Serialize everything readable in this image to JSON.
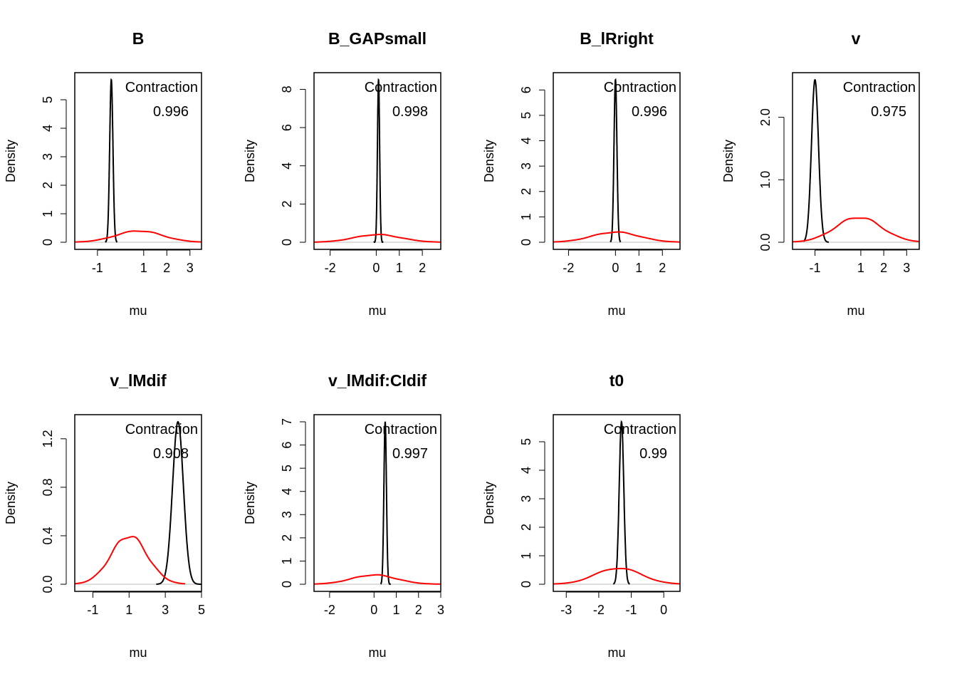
{
  "figure": {
    "colors": {
      "posterior": "#000000",
      "prior": "#ff0000",
      "zero_line": "#bebebe"
    }
  },
  "chart_data": [
    {
      "type": "line",
      "title": "B",
      "xlabel": "mu",
      "ylabel": "Density",
      "xlim": [
        -1.98,
        3.5
      ],
      "ylim": [
        0,
        5.7
      ],
      "xticks": [
        -1,
        1,
        2,
        3
      ],
      "yticks": [
        0,
        1,
        2,
        3,
        4,
        5
      ],
      "annotation": {
        "label": "Contraction",
        "value": "0.996"
      },
      "series": [
        {
          "role": "posterior",
          "center": -0.4,
          "sd": 0.07,
          "peak": 5.7,
          "range": [
            -0.65,
            -0.15
          ]
        },
        {
          "role": "prior",
          "center": 0.8,
          "sd": 1.0,
          "peak": 0.4,
          "range": [
            -1.98,
            3.5
          ]
        }
      ]
    },
    {
      "type": "line",
      "title": "B_GAPsmall",
      "xlabel": "mu",
      "ylabel": "Density",
      "xlim": [
        -2.7,
        2.8
      ],
      "ylim": [
        0,
        8.5
      ],
      "xticks": [
        -2,
        0,
        1,
        2
      ],
      "yticks": [
        0,
        2,
        4,
        6,
        8
      ],
      "annotation": {
        "label": "Contraction",
        "value": "0.998"
      },
      "series": [
        {
          "role": "posterior",
          "center": 0.1,
          "sd": 0.047,
          "peak": 8.5,
          "range": [
            -0.1,
            0.3
          ]
        },
        {
          "role": "prior",
          "center": 0.05,
          "sd": 1.0,
          "peak": 0.4,
          "range": [
            -2.7,
            2.8
          ]
        }
      ]
    },
    {
      "type": "line",
      "title": "B_lRright",
      "xlabel": "mu",
      "ylabel": "Density",
      "xlim": [
        -2.65,
        2.75
      ],
      "ylim": [
        0,
        6.4
      ],
      "xticks": [
        -2,
        0,
        1,
        2
      ],
      "yticks": [
        0,
        1,
        2,
        3,
        4,
        5,
        6
      ],
      "annotation": {
        "label": "Contraction",
        "value": "0.996"
      },
      "series": [
        {
          "role": "posterior",
          "center": 0.0,
          "sd": 0.062,
          "peak": 6.4,
          "range": [
            -0.22,
            0.22
          ]
        },
        {
          "role": "prior",
          "center": 0.0,
          "sd": 1.0,
          "peak": 0.4,
          "range": [
            -2.65,
            2.75
          ]
        }
      ]
    },
    {
      "type": "line",
      "title": "v",
      "xlabel": "mu",
      "ylabel": "Density",
      "xlim": [
        -1.98,
        3.55
      ],
      "ylim": [
        0,
        2.6
      ],
      "xticks": [
        -1,
        1,
        2,
        3
      ],
      "yticks": [
        0.0,
        1.0,
        2.0
      ],
      "ytick_labels": [
        "0.0",
        "1.0",
        "2.0"
      ],
      "annotation": {
        "label": "Contraction",
        "value": "0.975"
      },
      "series": [
        {
          "role": "posterior",
          "center": -1.0,
          "sd": 0.153,
          "peak": 2.6,
          "range": [
            -1.5,
            -0.4
          ]
        },
        {
          "role": "prior",
          "center": 0.9,
          "sd": 1.0,
          "peak": 0.4,
          "range": [
            -1.98,
            3.55
          ]
        }
      ]
    },
    {
      "type": "line",
      "title": "v_lMdif",
      "xlabel": "mu",
      "ylabel": "Density",
      "xlim": [
        -2.0,
        5.0
      ],
      "ylim": [
        0,
        1.34
      ],
      "xticks": [
        -1,
        1,
        3,
        5
      ],
      "yticks": [
        0.0,
        0.4,
        0.8,
        1.2
      ],
      "ytick_labels": [
        "0.0",
        "0.4",
        "0.8",
        "1.2"
      ],
      "annotation": {
        "label": "Contraction",
        "value": "0.908"
      },
      "series": [
        {
          "role": "posterior",
          "center": 3.7,
          "sd": 0.3,
          "peak": 1.34,
          "range": [
            2.5,
            5.0
          ]
        },
        {
          "role": "prior",
          "center": 1.0,
          "sd": 1.0,
          "peak": 0.4,
          "range": [
            -2.0,
            4.1
          ]
        }
      ]
    },
    {
      "type": "line",
      "title": "v_lMdif:CIdif",
      "xlabel": "mu",
      "ylabel": "Density",
      "xlim": [
        -2.7,
        3.0
      ],
      "ylim": [
        0,
        7.0
      ],
      "xticks": [
        -2,
        0,
        1,
        2,
        3
      ],
      "yticks": [
        0,
        1,
        2,
        3,
        4,
        5,
        6,
        7
      ],
      "annotation": {
        "label": "Contraction",
        "value": "0.997"
      },
      "series": [
        {
          "role": "posterior",
          "center": 0.5,
          "sd": 0.057,
          "peak": 7.0,
          "range": [
            0.3,
            0.75
          ]
        },
        {
          "role": "prior",
          "center": 0.0,
          "sd": 1.0,
          "peak": 0.4,
          "range": [
            -2.7,
            3.0
          ]
        }
      ]
    },
    {
      "type": "line",
      "title": "t0",
      "xlabel": "mu",
      "ylabel": "Density",
      "xlim": [
        -3.4,
        0.5
      ],
      "ylim": [
        0,
        5.7
      ],
      "xticks": [
        -3,
        -2,
        -1,
        0
      ],
      "yticks": [
        0,
        1,
        2,
        3,
        4,
        5
      ],
      "annotation": {
        "label": "Contraction",
        "value": "0.99"
      },
      "series": [
        {
          "role": "posterior",
          "center": -1.3,
          "sd": 0.07,
          "peak": 5.7,
          "range": [
            -1.55,
            -1.05
          ]
        },
        {
          "role": "prior",
          "center": -1.4,
          "sd": 0.7,
          "peak": 0.57,
          "range": [
            -3.4,
            0.5
          ]
        }
      ]
    }
  ]
}
